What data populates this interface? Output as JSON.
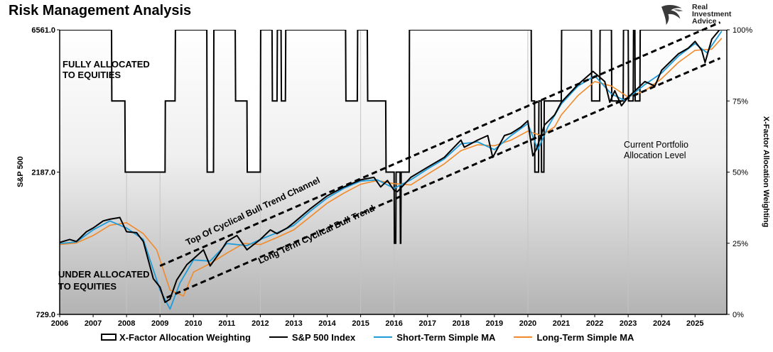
{
  "title": "Risk Management Analysis",
  "brand": {
    "line1": "Real",
    "line2": "Investment",
    "line3": "Advice"
  },
  "colors": {
    "sp500": "#000000",
    "short_ma": "#1f9bd7",
    "long_ma": "#f08a2a",
    "xfactor": "#000000",
    "channel": "#000000"
  },
  "chart_data": {
    "type": "line",
    "ylabel_left": "S&P 500",
    "ylabel_right": "X-Factor Allocation Weighting",
    "y_scale": "log",
    "ylim_left": [
      729.0,
      6561.0
    ],
    "left_ticks": [
      "729.0",
      "2187.0",
      "6561.0"
    ],
    "ylim_right": [
      0,
      100
    ],
    "right_ticks": [
      "0%",
      "25%",
      "50%",
      "75%",
      "100%"
    ],
    "xlim": [
      2006,
      2025.95
    ],
    "x_ticks": [
      "2006",
      "2007",
      "2008",
      "2009",
      "2010",
      "2011",
      "2012",
      "2013",
      "2014",
      "2015",
      "2016",
      "2017",
      "2018",
      "2019",
      "2020",
      "2021",
      "2022",
      "2023",
      "2024",
      "2025"
    ],
    "annotations": {
      "fully_line1": "FULLY ALLOCATED",
      "fully_line2": "TO EQUITIES",
      "under_line1": "UNDER ALLOCATED",
      "under_line2": "TO EQUITIES",
      "current_line1": "Current Portfolio",
      "current_line2": "Allocation Level",
      "top_channel": "Top Of Cyclical Bull Trend Channel",
      "long_trend": "Long Term Cyclical Bull Trend"
    },
    "series": [
      {
        "name": "S&P 500 Index",
        "key": "sp500",
        "x": [
          2006.0,
          2006.3,
          2006.5,
          2006.8,
          2007.0,
          2007.3,
          2007.5,
          2007.8,
          2008.0,
          2008.3,
          2008.5,
          2008.8,
          2009.0,
          2009.15,
          2009.3,
          2009.5,
          2009.8,
          2010.0,
          2010.3,
          2010.5,
          2010.8,
          2011.0,
          2011.3,
          2011.6,
          2011.8,
          2012.0,
          2012.3,
          2012.5,
          2012.8,
          2013.0,
          2013.5,
          2014.0,
          2014.5,
          2015.0,
          2015.4,
          2015.6,
          2015.8,
          2016.0,
          2016.1,
          2016.5,
          2017.0,
          2017.5,
          2018.0,
          2018.1,
          2018.5,
          2018.8,
          2018.95,
          2019.3,
          2019.5,
          2019.8,
          2020.0,
          2020.15,
          2020.25,
          2020.5,
          2020.8,
          2021.0,
          2021.5,
          2021.95,
          2022.3,
          2022.45,
          2022.6,
          2022.8,
          2023.0,
          2023.5,
          2023.8,
          2024.0,
          2024.5,
          2024.8,
          2025.0,
          2025.2,
          2025.3,
          2025.5,
          2025.8
        ],
        "values": [
          1270,
          1300,
          1280,
          1380,
          1420,
          1500,
          1520,
          1540,
          1380,
          1370,
          1280,
          960,
          900,
          800,
          820,
          950,
          1070,
          1120,
          1200,
          1060,
          1180,
          1280,
          1340,
          1200,
          1250,
          1300,
          1400,
          1360,
          1420,
          1480,
          1650,
          1820,
          1950,
          2060,
          2100,
          1950,
          2050,
          1900,
          1880,
          2100,
          2270,
          2450,
          2800,
          2650,
          2800,
          2900,
          2450,
          2900,
          2950,
          3100,
          3250,
          2480,
          2600,
          3150,
          3400,
          3750,
          4300,
          4760,
          4400,
          3750,
          4100,
          3650,
          3900,
          4400,
          4250,
          4800,
          5450,
          5700,
          6000,
          5600,
          5100,
          6100,
          6700
        ]
      },
      {
        "name": "Short-Term Simple MA",
        "key": "short_ma",
        "x": [
          2006.0,
          2006.5,
          2007.0,
          2007.5,
          2008.0,
          2008.5,
          2009.0,
          2009.3,
          2009.6,
          2010.0,
          2010.5,
          2011.0,
          2011.6,
          2012.0,
          2012.5,
          2013.0,
          2013.5,
          2014.0,
          2014.5,
          2015.0,
          2015.5,
          2016.0,
          2016.5,
          2017.0,
          2017.5,
          2018.0,
          2018.5,
          2019.0,
          2019.5,
          2020.0,
          2020.3,
          2020.6,
          2021.0,
          2021.5,
          2022.0,
          2022.5,
          2022.9,
          2023.5,
          2024.0,
          2024.5,
          2025.0,
          2025.35,
          2025.8
        ],
        "values": [
          1260,
          1275,
          1400,
          1500,
          1420,
          1300,
          880,
          760,
          930,
          1110,
          1100,
          1260,
          1240,
          1300,
          1370,
          1450,
          1620,
          1790,
          1930,
          2040,
          2060,
          1930,
          2060,
          2240,
          2420,
          2720,
          2760,
          2600,
          2900,
          3180,
          2600,
          3100,
          3700,
          4250,
          4600,
          4000,
          3800,
          4300,
          4700,
          5350,
          5900,
          5500,
          6500
        ]
      },
      {
        "name": "Long-Term Simple MA",
        "key": "long_ma",
        "x": [
          2006.0,
          2006.5,
          2007.0,
          2007.5,
          2008.0,
          2008.5,
          2008.9,
          2009.3,
          2009.7,
          2010.0,
          2010.5,
          2011.0,
          2011.5,
          2012.0,
          2012.5,
          2013.0,
          2013.5,
          2014.0,
          2014.5,
          2015.0,
          2015.5,
          2016.0,
          2016.5,
          2017.0,
          2017.5,
          2018.0,
          2018.5,
          2019.0,
          2019.5,
          2020.0,
          2020.4,
          2020.8,
          2021.0,
          2021.5,
          2022.0,
          2022.5,
          2023.0,
          2023.5,
          2024.0,
          2024.5,
          2025.0,
          2025.5,
          2025.8
        ],
        "values": [
          1250,
          1265,
          1340,
          1450,
          1480,
          1360,
          1200,
          880,
          840,
          1010,
          1080,
          1170,
          1260,
          1250,
          1320,
          1400,
          1550,
          1720,
          1860,
          1990,
          2050,
          2000,
          1980,
          2150,
          2330,
          2580,
          2700,
          2680,
          2800,
          3000,
          2900,
          3100,
          3400,
          3950,
          4400,
          4250,
          3900,
          4100,
          4500,
          5100,
          5600,
          5650,
          6150
        ]
      },
      {
        "name": "X-Factor Allocation Weighting",
        "key": "xfactor",
        "unit": "%",
        "x": [
          2006.0,
          2007.55,
          2007.56,
          2007.95,
          2007.96,
          2009.15,
          2009.16,
          2009.45,
          2009.46,
          2010.4,
          2010.41,
          2010.6,
          2010.61,
          2011.25,
          2011.26,
          2011.6,
          2011.61,
          2012.0,
          2012.01,
          2012.35,
          2012.36,
          2012.5,
          2012.51,
          2012.62,
          2012.63,
          2012.75,
          2012.76,
          2014.55,
          2014.56,
          2014.9,
          2014.91,
          2015.2,
          2015.21,
          2015.75,
          2015.76,
          2016.0,
          2016.01,
          2016.05,
          2016.06,
          2016.18,
          2016.19,
          2016.2,
          2016.21,
          2016.45,
          2016.46,
          2020.1,
          2020.11,
          2020.2,
          2020.21,
          2020.32,
          2020.33,
          2020.4,
          2020.41,
          2020.48,
          2020.49,
          2021.0,
          2021.01,
          2021.9,
          2021.91,
          2022.15,
          2022.16,
          2022.5,
          2022.51,
          2022.85,
          2022.86,
          2023.0,
          2023.01,
          2023.15,
          2023.16,
          2023.2,
          2023.21,
          2023.35,
          2023.36,
          2025.95
        ],
        "values": [
          100,
          100,
          75,
          75,
          50,
          50,
          75,
          75,
          100,
          100,
          50,
          50,
          100,
          100,
          75,
          75,
          50,
          50,
          100,
          100,
          75,
          75,
          100,
          100,
          75,
          75,
          100,
          100,
          75,
          75,
          100,
          100,
          75,
          75,
          50,
          50,
          25,
          25,
          50,
          50,
          25,
          25,
          50,
          50,
          100,
          100,
          75,
          75,
          50,
          50,
          75,
          75,
          50,
          50,
          75,
          75,
          100,
          100,
          75,
          75,
          100,
          100,
          75,
          75,
          100,
          100,
          75,
          75,
          100,
          100,
          75,
          75,
          100,
          100
        ]
      }
    ],
    "trend_lines": [
      {
        "name": "Top Of Cyclical Bull Trend Channel",
        "x": [
          2009.0,
          2025.75
        ],
        "values": [
          1060,
          6950
        ]
      },
      {
        "name": "Long Term Cyclical Bull Trend",
        "x": [
          2009.2,
          2025.75
        ],
        "values": [
          830,
          5270
        ]
      }
    ],
    "grid_x": [
      2008,
      2009,
      2012,
      2015,
      2016,
      2020,
      2023
    ],
    "grid": "vertical lines at selected years",
    "legend": "bottom",
    "legend_entries": [
      "X-Factor Allocation Weighting",
      "S&P 500 Index",
      "Short-Term Simple MA",
      "Long-Term Simple MA"
    ]
  }
}
